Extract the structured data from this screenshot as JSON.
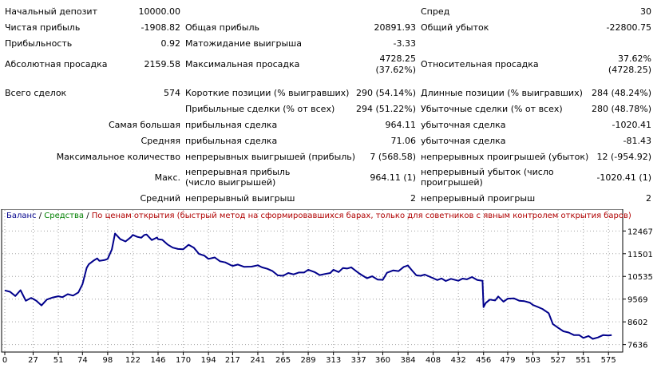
{
  "stats": {
    "initial_deposit": {
      "label": "Начальный депозит",
      "value": "10000.00"
    },
    "spread": {
      "label": "Спред",
      "value": "30"
    },
    "net_profit": {
      "label": "Чистая прибыль",
      "value": "-1908.82"
    },
    "gross_profit": {
      "label": "Общая прибыль",
      "value": "20891.93"
    },
    "gross_loss": {
      "label": "Общий убыток",
      "value": "-22800.75"
    },
    "profit_factor": {
      "label": "Прибыльность",
      "value": "0.92"
    },
    "expected_payoff": {
      "label": "Матожидание выигрыша",
      "value": "-3.33"
    },
    "absolute_drawdown": {
      "label": "Абсолютная просадка",
      "value": "2159.58"
    },
    "maximal_drawdown": {
      "label": "Максимальная просадка",
      "value": "4728.25",
      "value2": "(37.62%)"
    },
    "relative_drawdown": {
      "label": "Относительная просадка",
      "value": "37.62%",
      "value2": "(4728.25)"
    },
    "total_trades": {
      "label": "Всего сделок",
      "value": "574"
    },
    "short_positions": {
      "label": "Короткие позиции (% выигравших)",
      "value": "290 (54.14%)"
    },
    "long_positions": {
      "label": "Длинные позиции (% выигравших)",
      "value": "284 (48.24%)"
    },
    "profit_trades": {
      "label": "Прибыльные сделки (% от всех)",
      "value": "294 (51.22%)"
    },
    "loss_trades": {
      "label": "Убыточные сделки (% от всех)",
      "value": "280 (48.78%)"
    },
    "largest": {
      "label": "Самая большая",
      "profit_label": "прибыльная сделка",
      "profit_value": "964.11",
      "loss_label": "убыточная сделка",
      "loss_value": "-1020.41"
    },
    "average": {
      "label": "Средняя",
      "profit_label": "прибыльная сделка",
      "profit_value": "71.06",
      "loss_label": "убыточная сделка",
      "loss_value": "-81.43"
    },
    "max_consecutive": {
      "label": "Максимальное количество",
      "wins_label": "непрерывных выигрышей (прибыль)",
      "wins_value": "7 (568.58)",
      "losses_label": "непрерывных проигрышей (убыток)",
      "losses_value": "12 (-954.92)"
    },
    "max_consecutive_amount": {
      "label": "Макс.",
      "profit_label": "непрерывная прибыль (число выигрышей)",
      "profit_value": "964.11 (1)",
      "loss_label": "непрерывный убыток (число проигрышей)",
      "loss_value": "-1020.41 (1)"
    },
    "avg_consecutive": {
      "label": "Средний",
      "wins_label": "непрерывный выигрыш",
      "wins_value": "2",
      "losses_label": "непрерывный проигрыш",
      "losses_value": "2"
    }
  },
  "chart_legend": {
    "balance": "Баланс",
    "sep1": " / ",
    "equity": "Средства",
    "sep2": " / ",
    "note": "По ценам открытия (быстрый метод на сформировавшихся барах, только для советников с явным контролем открытия баров)"
  },
  "chart_data": {
    "type": "line",
    "xlim": [
      0,
      587
    ],
    "ylim": [
      7420,
      12920
    ],
    "x_ticks": [
      "0",
      "27",
      "51",
      "74",
      "98",
      "122",
      "146",
      "170",
      "194",
      "217",
      "241",
      "265",
      "289",
      "313",
      "337",
      "360",
      "384",
      "408",
      "432",
      "456",
      "479",
      "503",
      "527",
      "551",
      "575"
    ],
    "y_ticks": [
      12467,
      11501,
      10535,
      9569,
      8602,
      7636
    ],
    "grid": true,
    "colors": {
      "balance": "#00008b",
      "grid": "#a0a0a0"
    },
    "series": [
      {
        "name": "Баланс",
        "x": [
          0,
          5,
          10,
          15,
          20,
          25,
          27,
          30,
          35,
          40,
          45,
          51,
          55,
          60,
          65,
          70,
          74,
          78,
          80,
          85,
          88,
          90,
          95,
          98,
          102,
          105,
          110,
          115,
          120,
          122,
          126,
          130,
          133,
          135,
          140,
          145,
          146,
          150,
          155,
          160,
          165,
          170,
          175,
          180,
          185,
          190,
          194,
          200,
          205,
          210,
          215,
          217,
          222,
          228,
          235,
          241,
          245,
          250,
          255,
          260,
          265,
          270,
          275,
          280,
          285,
          289,
          295,
          300,
          305,
          310,
          313,
          318,
          322,
          326,
          330,
          337,
          340,
          345,
          350,
          355,
          360,
          364,
          370,
          375,
          380,
          384,
          388,
          392,
          396,
          400,
          408,
          412,
          416,
          420,
          425,
          432,
          436,
          440,
          445,
          450,
          455,
          456,
          458,
          462,
          467,
          470,
          475,
          479,
          485,
          490,
          495,
          500,
          503,
          508,
          512,
          518,
          522,
          527,
          532,
          537,
          542,
          547,
          551,
          556,
          560,
          565,
          570,
          575,
          578
        ],
        "y": [
          9940,
          9880,
          9700,
          9950,
          9500,
          9620,
          9580,
          9500,
          9300,
          9550,
          9630,
          9690,
          9650,
          9780,
          9720,
          9850,
          10200,
          10900,
          11050,
          11220,
          11300,
          11200,
          11230,
          11280,
          11680,
          12360,
          12120,
          12020,
          12200,
          12300,
          12220,
          12180,
          12300,
          12320,
          12080,
          12190,
          12120,
          12090,
          11890,
          11760,
          11700,
          11690,
          11880,
          11760,
          11490,
          11420,
          11280,
          11340,
          11180,
          11130,
          11020,
          10980,
          11040,
          10940,
          10950,
          11010,
          10920,
          10860,
          10760,
          10580,
          10560,
          10680,
          10620,
          10700,
          10700,
          10820,
          10720,
          10590,
          10640,
          10680,
          10820,
          10720,
          10890,
          10870,
          10920,
          10680,
          10590,
          10460,
          10540,
          10400,
          10390,
          10690,
          10790,
          10760,
          10940,
          11000,
          10780,
          10580,
          10560,
          10610,
          10460,
          10380,
          10450,
          10340,
          10430,
          10350,
          10440,
          10410,
          10510,
          10380,
          10350,
          9230,
          9400,
          9550,
          9510,
          9680,
          9460,
          9590,
          9600,
          9500,
          9480,
          9420,
          9320,
          9230,
          9150,
          8970,
          8510,
          8350,
          8200,
          8150,
          8040,
          8040,
          7920,
          8000,
          7880,
          7940,
          8040,
          8020,
          8040
        ]
      }
    ]
  }
}
